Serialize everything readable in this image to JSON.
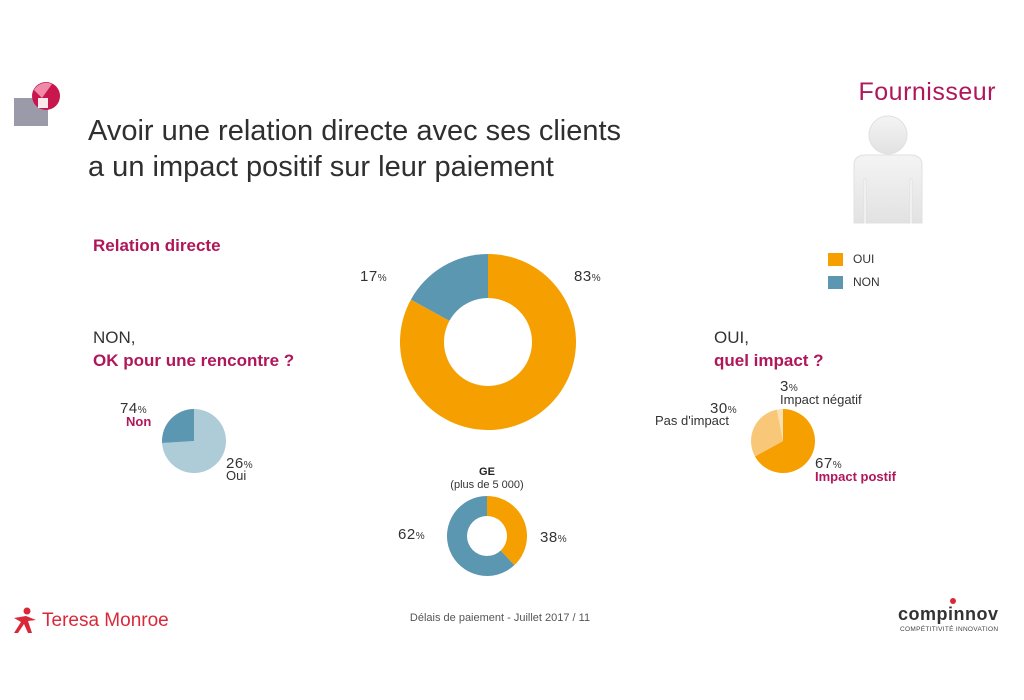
{
  "header": {
    "title_line1": "Avoir une relation directe avec ses clients",
    "title_line2": "a un impact positif sur leur paiement",
    "role_title": "Fournisseur"
  },
  "legend": [
    {
      "label": "OUI",
      "color": "#f5a000"
    },
    {
      "label": "NON",
      "color": "#5b97b1"
    }
  ],
  "sections": {
    "relation_title": "Relation directe",
    "non_line1": "NON,",
    "non_line2": "OK pour une rencontre ?",
    "oui_line1": "OUI,",
    "oui_line2": "quel impact ?"
  },
  "chart_data": [
    {
      "type": "pie",
      "name": "Relation directe",
      "donut": true,
      "slices": [
        {
          "label": "OUI",
          "value": 83,
          "color": "#f5a000",
          "display": "83"
        },
        {
          "label": "NON",
          "value": 17,
          "color": "#5b97b1",
          "display": "17"
        }
      ]
    },
    {
      "type": "pie",
      "name": "OK pour une rencontre ?",
      "donut": false,
      "slices": [
        {
          "label": "Non",
          "value": 74,
          "color": "#aecbd8",
          "display": "74"
        },
        {
          "label": "Oui",
          "value": 26,
          "color": "#5b97b1",
          "display": "26"
        }
      ]
    },
    {
      "type": "pie",
      "name": "quel impact ?",
      "donut": false,
      "slices": [
        {
          "label": "Impact postif",
          "value": 67,
          "color": "#f5a000",
          "display": "67"
        },
        {
          "label": "Pas d'impact",
          "value": 30,
          "color": "#f9c778",
          "display": "30"
        },
        {
          "label": "Impact négatif",
          "value": 3,
          "color": "#fbe0b4",
          "display": "3"
        }
      ]
    },
    {
      "type": "pie",
      "name": "GE",
      "subtitle": "(plus de 5 000)",
      "donut": true,
      "slices": [
        {
          "label": "OUI",
          "value": 38,
          "color": "#f5a000",
          "display": "38"
        },
        {
          "label": "NON",
          "value": 62,
          "color": "#5b97b1",
          "display": "62"
        }
      ]
    }
  ],
  "labels": {
    "pct_sign": "%",
    "ge_title": "GE",
    "ge_subtitle": "(plus de 5 000)",
    "non_label": "Non",
    "oui_label": "Oui",
    "pas_impact": "Pas d'impact",
    "impact_negatif": "Impact négatif",
    "impact_positif": "Impact postif"
  },
  "footer": {
    "brand": "Teresa Monroe",
    "text": "Délais de paiement - Juillet 2017 / 11",
    "partner_name": "compinnov",
    "partner_tagline": "COMPÉTITIVITÉ INNOVATION"
  }
}
